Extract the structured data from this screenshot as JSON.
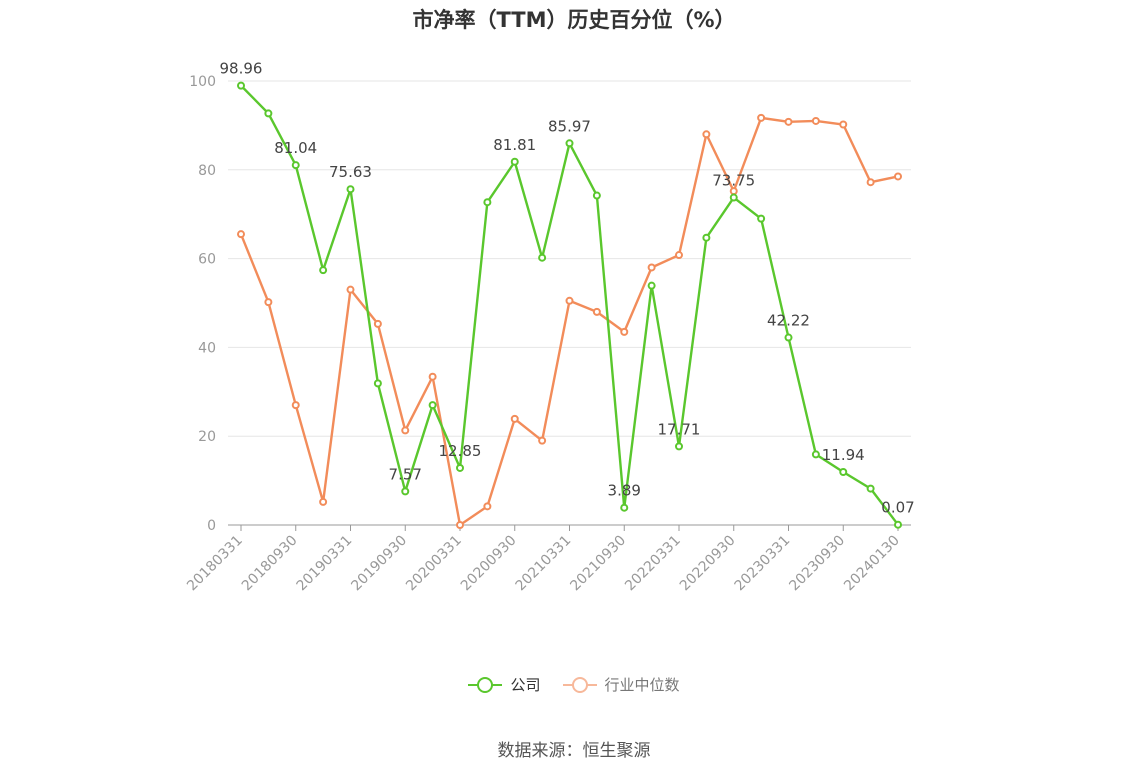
{
  "title": "市净率（TTM）历史百分位（%）",
  "source": "数据来源：恒生聚源",
  "chart_data": {
    "type": "line",
    "title": "市净率（TTM）历史百分位（%）",
    "ylim": [
      0,
      100
    ],
    "yticks": [
      0,
      20,
      40,
      60,
      80,
      100
    ],
    "grid": true,
    "legend_position": "bottom",
    "x_tick_labels": [
      "20180331",
      "20180930",
      "20190331",
      "20190930",
      "20200331",
      "20200930",
      "20210331",
      "20210930",
      "20220331",
      "20220930",
      "20230331",
      "20230930",
      "20240130"
    ],
    "x": [
      "20180331",
      "20180630",
      "20180930",
      "20181231",
      "20190331",
      "20190630",
      "20190930",
      "20191231",
      "20200331",
      "20200630",
      "20200930",
      "20201231",
      "20210331",
      "20210630",
      "20210930",
      "20211231",
      "20220331",
      "20220630",
      "20220930",
      "20221231",
      "20230331",
      "20230630",
      "20230930",
      "20231231",
      "20240130"
    ],
    "series": [
      {
        "name": "公司",
        "color": "#5ac72d",
        "values": [
          98.96,
          92.7,
          81.04,
          57.4,
          75.63,
          31.9,
          7.57,
          27.0,
          12.85,
          72.7,
          81.81,
          60.2,
          85.97,
          74.2,
          3.89,
          53.9,
          17.71,
          64.7,
          73.75,
          69.0,
          42.22,
          15.9,
          11.94,
          8.2,
          0.07
        ],
        "labels": {
          "0": "98.96",
          "2": "81.04",
          "4": "75.63",
          "6": "7.57",
          "8": "12.85",
          "10": "81.81",
          "12": "85.97",
          "14": "3.89",
          "16": "17.71",
          "18": "73.75",
          "20": "42.22",
          "22": "11.94",
          "24": "0.07"
        }
      },
      {
        "name": "行业中位数",
        "color": "#f28c5a",
        "values": [
          65.5,
          50.2,
          27.0,
          5.2,
          53.0,
          45.3,
          21.3,
          33.4,
          0.0,
          4.2,
          23.9,
          19.0,
          50.5,
          48.0,
          43.5,
          58.0,
          60.8,
          88.0,
          75.2,
          91.7,
          90.8,
          91.0,
          90.2,
          77.2,
          78.5
        ]
      }
    ]
  }
}
